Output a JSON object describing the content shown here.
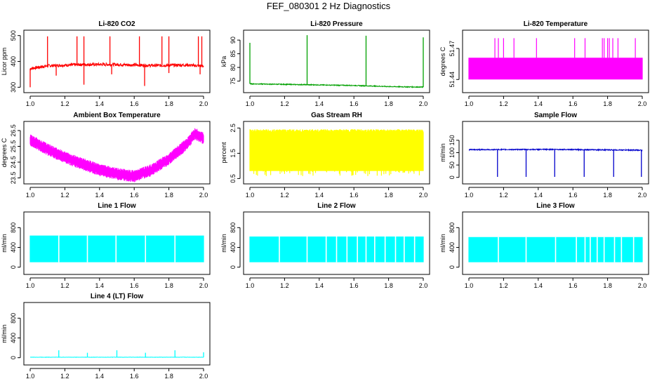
{
  "title": "FEF_080301  2 Hz Diagnostics",
  "chart_data": [
    {
      "type": "line",
      "title": "Li-820 CO2",
      "xlabel": "",
      "ylabel": "Licor ppm",
      "xlim": [
        1.0,
        2.0
      ],
      "xticks": [
        1.0,
        1.2,
        1.4,
        1.6,
        1.8,
        2.0
      ],
      "xtick_labels": [
        "1.0",
        "1.2",
        "1.4",
        "1.6",
        "1.8",
        "2.0"
      ],
      "ylim": [
        290,
        510
      ],
      "yticks": [
        300,
        400,
        500
      ],
      "ytick_labels": [
        "300",
        "400",
        "500"
      ],
      "color": "#ff0000",
      "grid": false,
      "series": [
        {
          "baseline": [
            [
              1.0,
              372
            ],
            [
              1.1,
              383
            ],
            [
              1.3,
              388
            ],
            [
              1.5,
              388
            ],
            [
              1.7,
              384
            ],
            [
              1.9,
              386
            ],
            [
              2.0,
              382
            ]
          ],
          "noise": 6,
          "spikes_up": [
            [
              1.1,
              497
            ],
            [
              1.27,
              497
            ],
            [
              1.31,
              497
            ],
            [
              1.46,
              497
            ],
            [
              1.63,
              497
            ],
            [
              1.76,
              497
            ],
            [
              1.8,
              497
            ],
            [
              1.97,
              497
            ],
            [
              1.99,
              497
            ]
          ],
          "spikes_down": [
            [
              1.0,
              300
            ],
            [
              1.15,
              345
            ],
            [
              1.31,
              310
            ],
            [
              1.47,
              350
            ],
            [
              1.66,
              305
            ],
            [
              1.8,
              355
            ],
            [
              1.98,
              350
            ]
          ]
        }
      ]
    },
    {
      "type": "line",
      "title": "Li-820 Pressure",
      "xlabel": "",
      "ylabel": "kPa",
      "xlim": [
        1.0,
        2.0
      ],
      "xticks": [
        1.0,
        1.2,
        1.4,
        1.6,
        1.8,
        2.0
      ],
      "xtick_labels": [
        "1.0",
        "1.2",
        "1.4",
        "1.6",
        "1.8",
        "2.0"
      ],
      "ylim": [
        71.8,
        92.6
      ],
      "yticks": [
        75,
        80,
        85,
        90
      ],
      "ytick_labels": [
        "75",
        "80",
        "85",
        "90"
      ],
      "color": "#00a000",
      "grid": false,
      "series": [
        {
          "baseline": [
            [
              1.0,
              74.0
            ],
            [
              1.2,
              73.8
            ],
            [
              1.4,
              73.6
            ],
            [
              1.6,
              73.4
            ],
            [
              1.8,
              73.0
            ],
            [
              2.0,
              72.8
            ]
          ],
          "noise": 0.15,
          "spikes_up": [
            [
              1.0,
              89
            ],
            [
              1.33,
              91.8
            ],
            [
              1.67,
              91.6
            ],
            [
              2.0,
              91
            ]
          ],
          "spikes_down": []
        }
      ]
    },
    {
      "type": "area",
      "title": "Li-820 Temperature",
      "xlabel": "",
      "ylabel": "degrees C",
      "xlim": [
        1.0,
        2.0
      ],
      "xticks": [
        1.0,
        1.2,
        1.4,
        1.6,
        1.8,
        2.0
      ],
      "xtick_labels": [
        "1.0",
        "1.2",
        "1.4",
        "1.6",
        "1.8",
        "2.0"
      ],
      "ylim": [
        51.43,
        51.485
      ],
      "yticks": [
        51.44,
        51.47
      ],
      "ytick_labels": [
        "51.44",
        "51.47"
      ],
      "color": "#ff00ff",
      "grid": false,
      "series": [
        {
          "band_low": 51.44,
          "band_high": 51.461,
          "spikes_up": [
            [
              1.15,
              51.48
            ],
            [
              1.17,
              51.48
            ],
            [
              1.2,
              51.48
            ],
            [
              1.26,
              51.48
            ],
            [
              1.39,
              51.48
            ],
            [
              1.61,
              51.48
            ],
            [
              1.67,
              51.48
            ],
            [
              1.77,
              51.48
            ],
            [
              1.78,
              51.48
            ],
            [
              1.8,
              51.48
            ],
            [
              1.81,
              51.48
            ],
            [
              1.83,
              51.48
            ],
            [
              1.86,
              51.48
            ],
            [
              1.96,
              51.48
            ]
          ]
        }
      ]
    },
    {
      "type": "area",
      "title": "Ambient Box Temperature",
      "xlabel": "",
      "ylabel": "degrees C",
      "xlim": [
        1.0,
        2.0
      ],
      "xticks": [
        1.0,
        1.2,
        1.4,
        1.6,
        1.8,
        2.0
      ],
      "xtick_labels": [
        "1.0",
        "1.2",
        "1.4",
        "1.6",
        "1.8",
        "2.0"
      ],
      "ylim": [
        23.3,
        26.9
      ],
      "yticks": [
        23.5,
        24.5,
        25.5,
        26.5
      ],
      "ytick_labels": [
        "23.5",
        "24.5",
        "25.5",
        "26.5"
      ],
      "color": "#ff00ff",
      "grid": false,
      "series": [
        {
          "center": [
            [
              1.0,
              25.9
            ],
            [
              1.1,
              25.3
            ],
            [
              1.2,
              24.8
            ],
            [
              1.3,
              24.4
            ],
            [
              1.4,
              24.0
            ],
            [
              1.5,
              23.75
            ],
            [
              1.6,
              23.6
            ],
            [
              1.7,
              24.0
            ],
            [
              1.8,
              24.7
            ],
            [
              1.9,
              25.6
            ],
            [
              1.95,
              26.3
            ],
            [
              2.0,
              26.0
            ]
          ],
          "half_width": 0.35
        }
      ]
    },
    {
      "type": "area",
      "title": "Gas Stream RH",
      "xlabel": "",
      "ylabel": "percent",
      "xlim": [
        1.0,
        2.0
      ],
      "xticks": [
        1.0,
        1.2,
        1.4,
        1.6,
        1.8,
        2.0
      ],
      "xtick_labels": [
        "1.0",
        "1.2",
        "1.4",
        "1.6",
        "1.8",
        "2.0"
      ],
      "ylim": [
        0.4,
        2.65
      ],
      "yticks": [
        0.5,
        1.5,
        2.5
      ],
      "ytick_labels": [
        "0.5",
        "1.5",
        "2.5"
      ],
      "color": "#ffff00",
      "grid": false,
      "series": [
        {
          "band_low": 0.8,
          "band_high": 2.45,
          "dips_to": 0.6
        }
      ]
    },
    {
      "type": "line",
      "title": "Sample Flow",
      "xlabel": "",
      "ylabel": "ml/min",
      "xlim": [
        1.0,
        2.0
      ],
      "xticks": [
        1.0,
        1.2,
        1.4,
        1.6,
        1.8,
        2.0
      ],
      "xtick_labels": [
        "1.0",
        "1.2",
        "1.4",
        "1.6",
        "1.8",
        "2.0"
      ],
      "ylim": [
        -15,
        215
      ],
      "yticks": [
        0,
        50,
        100,
        150
      ],
      "ytick_labels": [
        "0",
        "50",
        "100",
        "150"
      ],
      "color": "#0000cc",
      "grid": false,
      "series": [
        {
          "baseline": [
            [
              1.0,
              112
            ],
            [
              1.5,
              113
            ],
            [
              2.0,
              110
            ]
          ],
          "noise": 2,
          "spikes_down": [
            [
              1.165,
              2
            ],
            [
              1.33,
              2
            ],
            [
              1.495,
              2
            ],
            [
              1.665,
              2
            ],
            [
              1.835,
              2
            ],
            [
              1.995,
              2
            ]
          ]
        }
      ]
    },
    {
      "type": "area",
      "title": "Line 1 Flow",
      "xlabel": "",
      "ylabel": "ml/min",
      "xlim": [
        1.0,
        2.0
      ],
      "xticks": [
        1.0,
        1.2,
        1.4,
        1.6,
        1.8,
        2.0
      ],
      "xtick_labels": [
        "1.0",
        "1.2",
        "1.4",
        "1.6",
        "1.8",
        "2.0"
      ],
      "ylim": [
        -90,
        1060
      ],
      "yticks": [
        0,
        400,
        800
      ],
      "ytick_labels": [
        "0",
        "400",
        "800"
      ],
      "color": "#00ffff",
      "grid": false,
      "series": [
        {
          "band_low": 100,
          "band_high": 640,
          "gaps": [
            1.165,
            1.33,
            1.495,
            1.665,
            1.835
          ]
        }
      ]
    },
    {
      "type": "area",
      "title": "Line 2 Flow",
      "xlabel": "",
      "ylabel": "ml/min",
      "xlim": [
        1.0,
        2.0
      ],
      "xticks": [
        1.0,
        1.2,
        1.4,
        1.6,
        1.8,
        2.0
      ],
      "xtick_labels": [
        "1.0",
        "1.2",
        "1.4",
        "1.6",
        "1.8",
        "2.0"
      ],
      "ylim": [
        -90,
        1060
      ],
      "yticks": [
        0,
        400,
        800
      ],
      "ytick_labels": [
        "0",
        "400",
        "800"
      ],
      "color": "#00ffff",
      "grid": false,
      "series": [
        {
          "band_low": 100,
          "band_high": 620,
          "gaps": [
            1.17,
            1.33,
            1.44,
            1.5,
            1.56,
            1.62,
            1.67,
            1.72,
            1.78,
            1.84,
            1.89,
            1.95
          ]
        }
      ]
    },
    {
      "type": "area",
      "title": "Line 3 Flow",
      "xlabel": "",
      "ylabel": "ml/min",
      "xlim": [
        1.0,
        2.0
      ],
      "xticks": [
        1.0,
        1.2,
        1.4,
        1.6,
        1.8,
        2.0
      ],
      "xtick_labels": [
        "1.0",
        "1.2",
        "1.4",
        "1.6",
        "1.8",
        "2.0"
      ],
      "ylim": [
        -90,
        1060
      ],
      "yticks": [
        0,
        400,
        800
      ],
      "ytick_labels": [
        "0",
        "400",
        "800"
      ],
      "color": "#00ffff",
      "grid": false,
      "series": [
        {
          "band_low": 100,
          "band_high": 610,
          "gaps": [
            1.17,
            1.33,
            1.5,
            1.62,
            1.67,
            1.7,
            1.74,
            1.78,
            1.84,
            1.88,
            1.95
          ]
        }
      ]
    },
    {
      "type": "line",
      "title": "Line 4 (LT) Flow",
      "xlabel": "",
      "ylabel": "ml/min",
      "xlim": [
        1.0,
        2.0
      ],
      "xticks": [
        1.0,
        1.2,
        1.4,
        1.6,
        1.8,
        2.0
      ],
      "xtick_labels": [
        "1.0",
        "1.2",
        "1.4",
        "1.6",
        "1.8",
        "2.0"
      ],
      "ylim": [
        -90,
        1060
      ],
      "yticks": [
        0,
        400,
        800
      ],
      "ytick_labels": [
        "0",
        "400",
        "800"
      ],
      "color": "#00ffff",
      "grid": false,
      "series": [
        {
          "baseline": [
            [
              1.0,
              10
            ],
            [
              2.0,
              10
            ]
          ],
          "noise": 3,
          "spikes_up": [
            [
              1.165,
              150
            ],
            [
              1.33,
              100
            ],
            [
              1.5,
              150
            ],
            [
              1.665,
              100
            ],
            [
              1.835,
              150
            ],
            [
              2.0,
              110
            ]
          ]
        }
      ]
    }
  ]
}
